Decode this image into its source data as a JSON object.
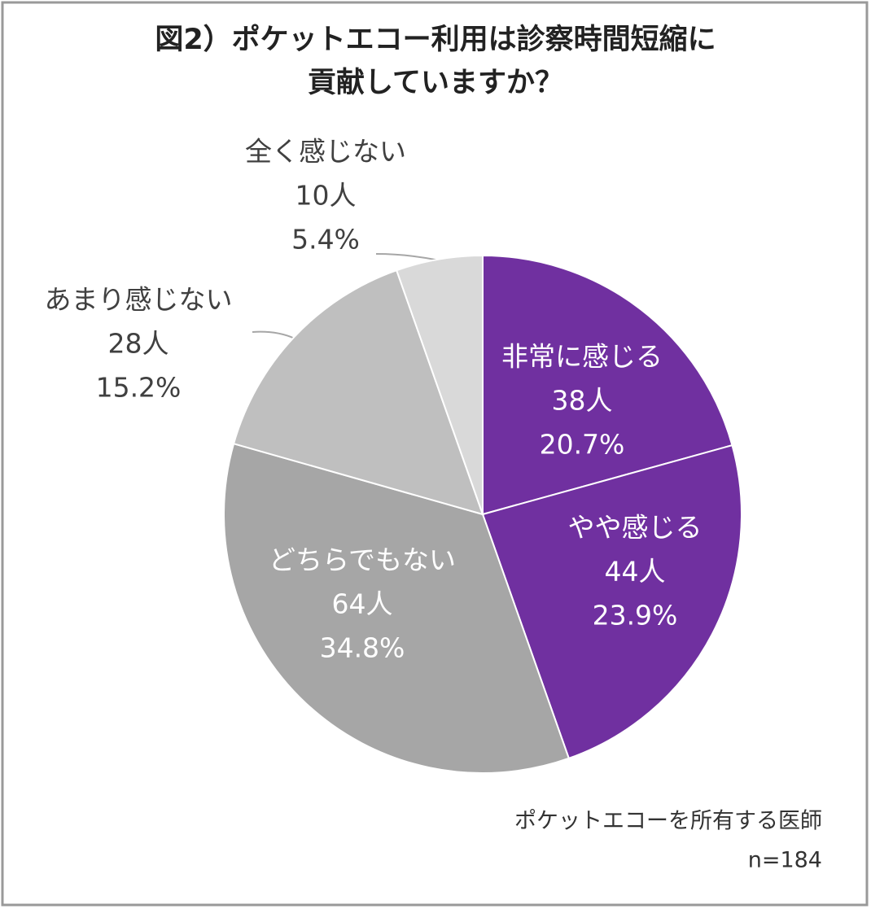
{
  "chart_data": {
    "type": "pie",
    "title": [
      "図2）ポケットエコー利用は診察時間短縮に",
      "貢献していますか？"
    ],
    "categories": [
      "非常に感じる",
      "やや感じる",
      "どちらでもない",
      "あまり感じない",
      "全く感じない"
    ],
    "values": [
      20.7,
      23.9,
      34.8,
      15.2,
      5.4
    ],
    "value_labels": [
      "20.7%",
      "23.9%",
      "34.8%",
      "15.2%",
      "5.4%"
    ],
    "counts": [
      38,
      44,
      64,
      28,
      10
    ],
    "count_labels": [
      "38人",
      "44人",
      "64人",
      "28人",
      "10人"
    ],
    "colors": [
      "#7030a0",
      "#7030a0",
      "#a6a6a6",
      "#bfbfbf",
      "#d9d9d9"
    ],
    "note": "ポケットエコーを所有する医師",
    "sample": "n=184"
  }
}
